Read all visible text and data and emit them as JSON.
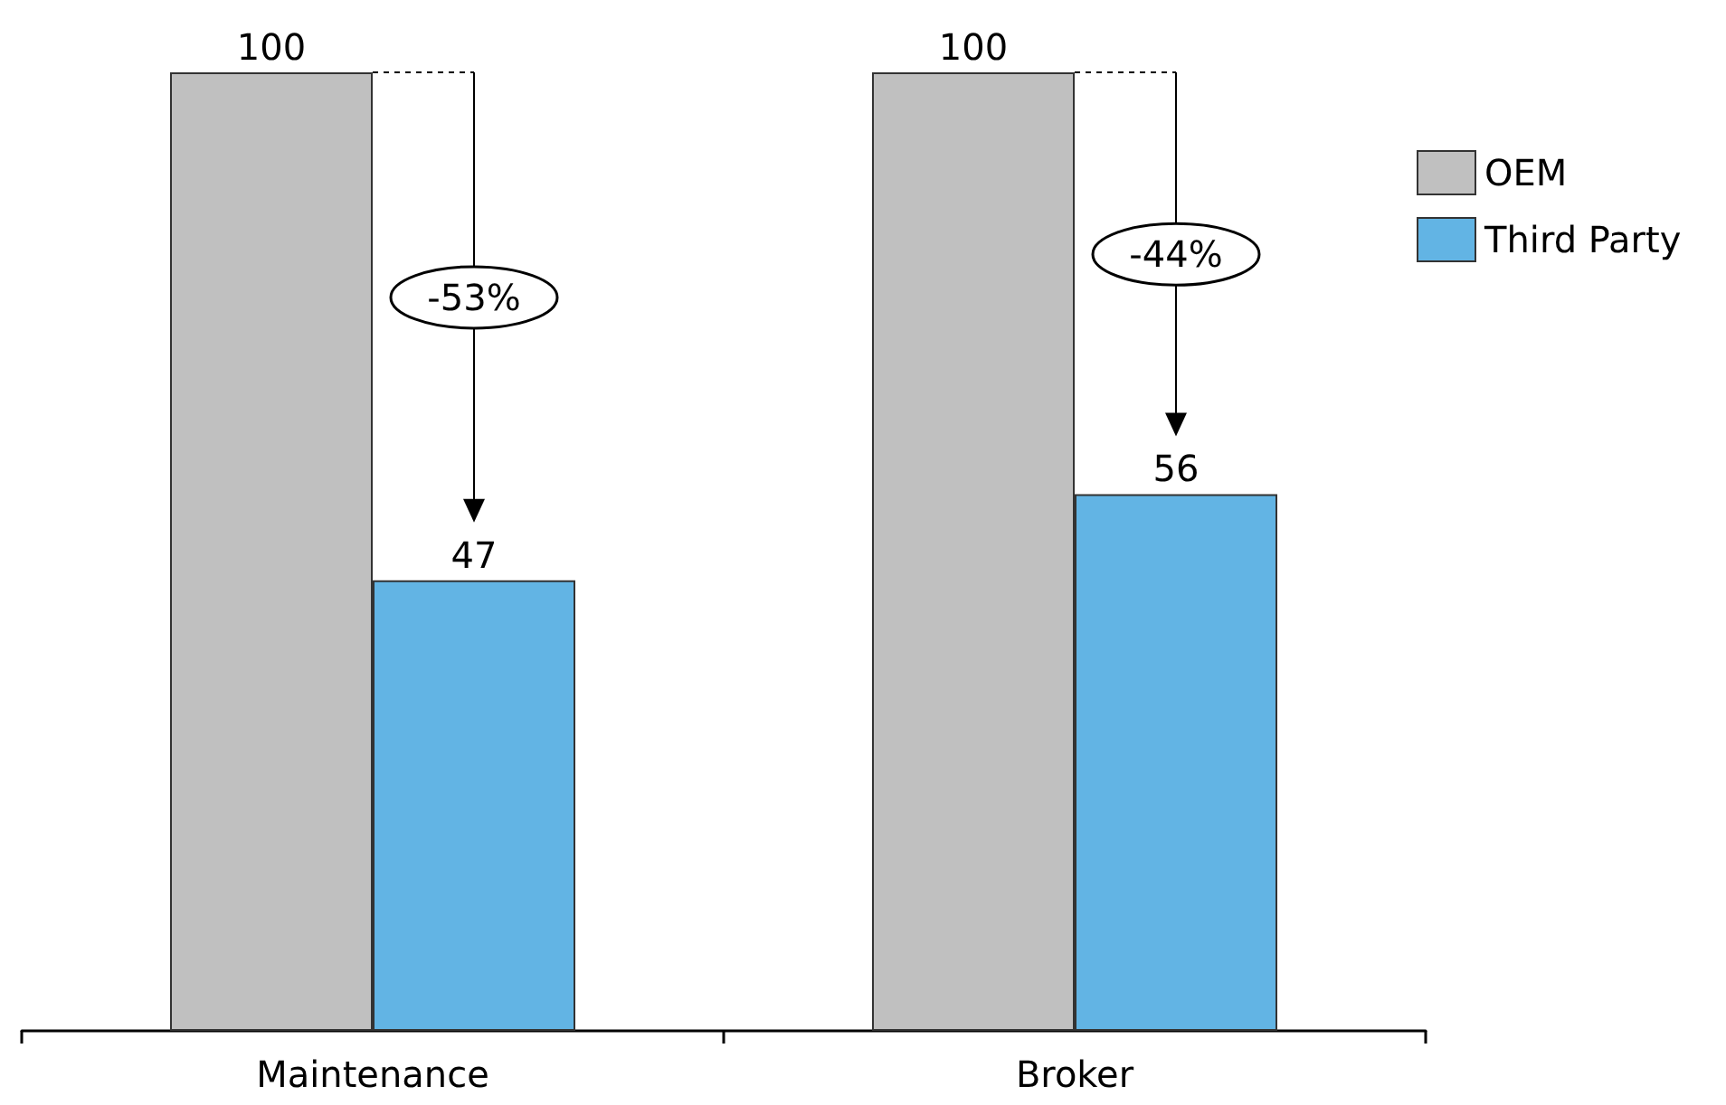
{
  "chart_data": {
    "type": "bar",
    "categories": [
      "Maintenance",
      "Broker"
    ],
    "series": [
      {
        "name": "OEM",
        "color": "#c0c0c0",
        "values": [
          100,
          100
        ]
      },
      {
        "name": "Third Party",
        "color": "#62b4e4",
        "values": [
          47,
          56
        ]
      }
    ],
    "annotations": [
      "-53%",
      "-44%"
    ],
    "ylim": [
      0,
      100
    ],
    "tick_labels": "x",
    "data_labels": true,
    "legend": "right"
  }
}
